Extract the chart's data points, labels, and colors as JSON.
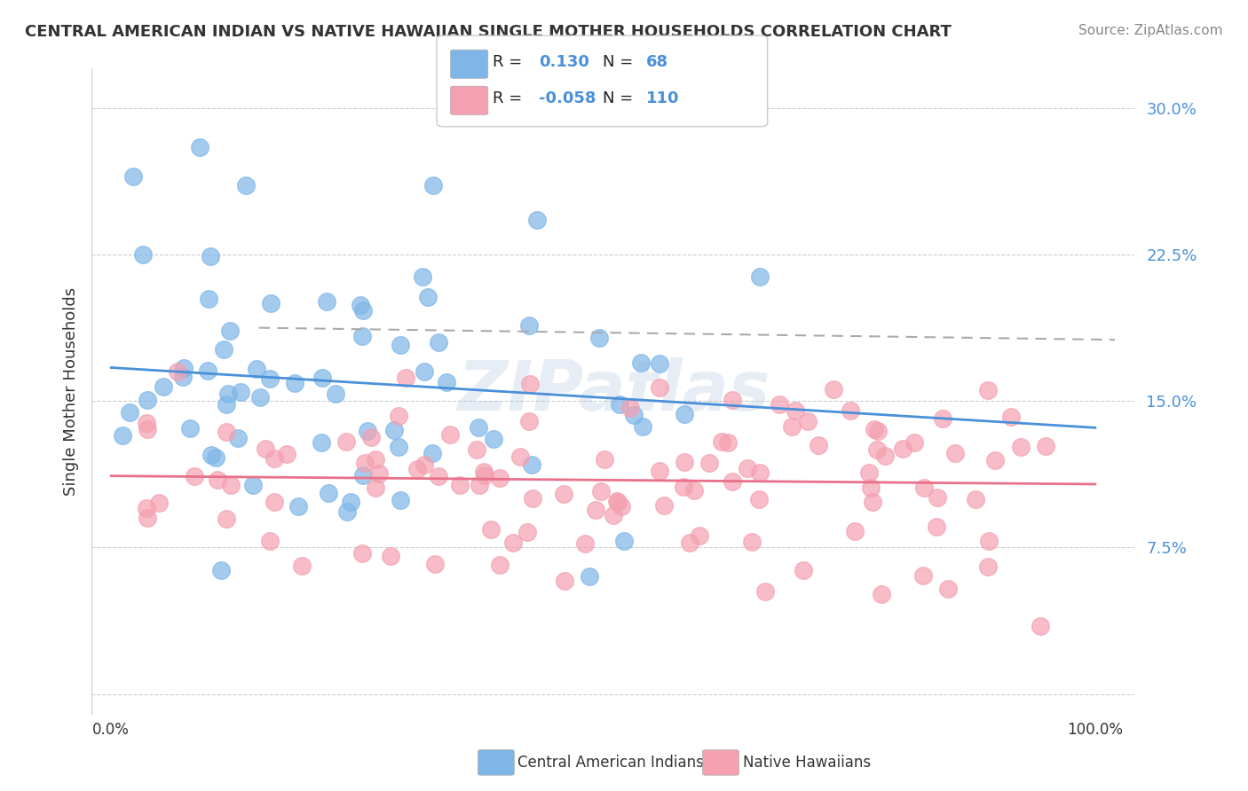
{
  "title": "CENTRAL AMERICAN INDIAN VS NATIVE HAWAIIAN SINGLE MOTHER HOUSEHOLDS CORRELATION CHART",
  "source": "Source: ZipAtlas.com",
  "ylabel": "Single Mother Households",
  "series1_label": "Central American Indians",
  "series1_color": "#7EB6E8",
  "series1_R": 0.13,
  "series1_N": 68,
  "series2_label": "Native Hawaiians",
  "series2_color": "#F4A0B0",
  "series2_R": -0.058,
  "series2_N": 110,
  "background_color": "#ffffff",
  "grid_color": "#cccccc",
  "title_fontsize": 13,
  "watermark_text": "ZIPatlas",
  "yticks": [
    0.0,
    0.075,
    0.15,
    0.225,
    0.3
  ],
  "ytick_labels": [
    "",
    "7.5%",
    "15.0%",
    "22.5%",
    "30.0%"
  ]
}
